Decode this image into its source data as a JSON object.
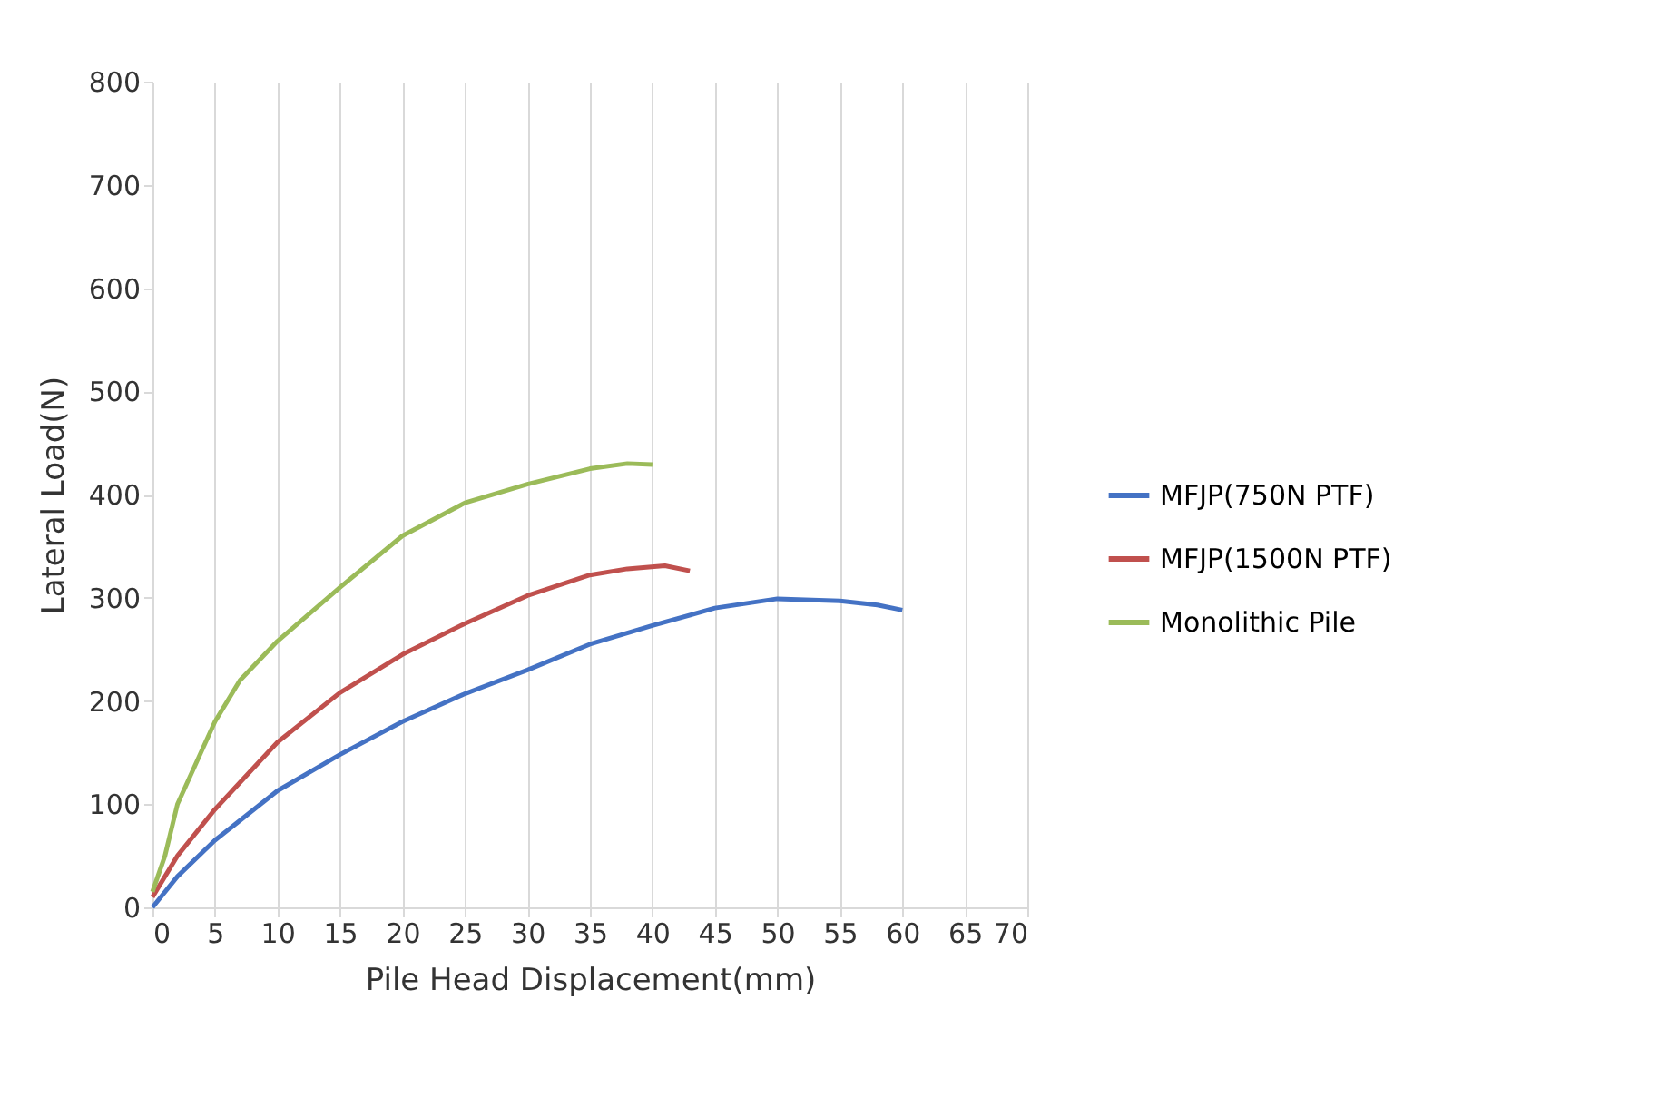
{
  "chart_data": {
    "type": "line",
    "xlabel": "Pile Head Displacement(mm)",
    "ylabel": "Lateral Load(N)",
    "xlim": [
      0,
      70
    ],
    "xticks": [
      0,
      5,
      10,
      15,
      20,
      25,
      30,
      35,
      40,
      45,
      50,
      55,
      60,
      65,
      70
    ],
    "ylim": [
      0,
      800
    ],
    "yticks": [
      0,
      100,
      200,
      300,
      400,
      500,
      600,
      700,
      800
    ],
    "grid": "x",
    "legend": "right",
    "marker": "none",
    "line_style": "solid",
    "series": [
      {
        "name": "MFJP(750N PTF)",
        "color": "#4472c4",
        "x": [
          0,
          2,
          5,
          10,
          15,
          20,
          25,
          30,
          35,
          40,
          45,
          50,
          55,
          58,
          60
        ],
        "values": [
          0,
          30,
          65,
          113,
          148,
          180,
          207,
          230,
          255,
          273,
          290,
          299,
          297,
          293,
          288
        ]
      },
      {
        "name": "MFJP(1500N PTF)",
        "color": "#c0504d",
        "x": [
          0,
          2,
          5,
          10,
          15,
          20,
          25,
          30,
          35,
          38,
          41,
          43
        ],
        "values": [
          10,
          50,
          95,
          160,
          208,
          245,
          275,
          302,
          322,
          328,
          331,
          326
        ]
      },
      {
        "name": "Monolithic Pile",
        "color": "#9bbb59",
        "x": [
          0,
          1,
          2,
          5,
          7,
          10,
          15,
          20,
          25,
          30,
          35,
          38,
          40
        ],
        "values": [
          15,
          50,
          100,
          180,
          220,
          258,
          310,
          360,
          392,
          410,
          425,
          430,
          429
        ]
      }
    ]
  }
}
